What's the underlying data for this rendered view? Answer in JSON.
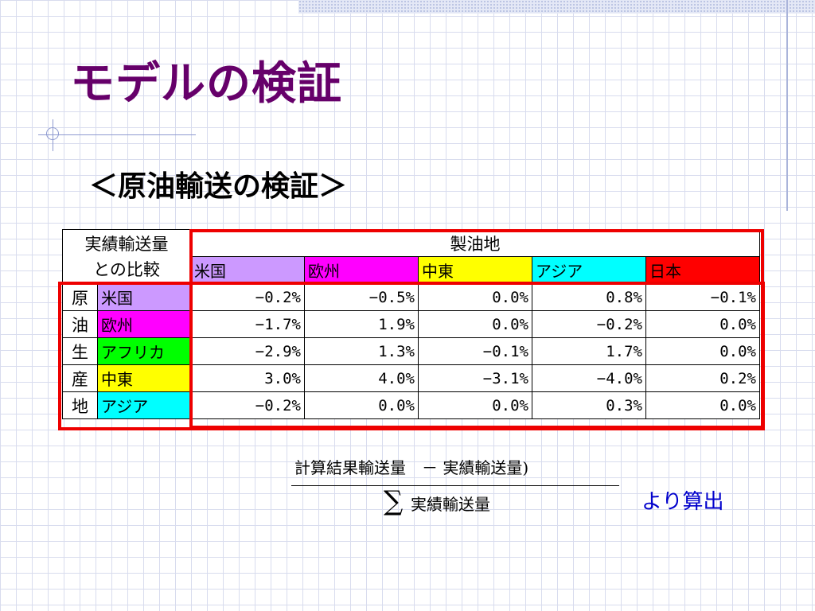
{
  "slide": {
    "title": "モデルの検証",
    "subtitle": "＜原油輸送の検証＞"
  },
  "table": {
    "corner_line1": "実績輸送量",
    "corner_line2": "との比較",
    "refinery_header": "製油地",
    "destinations": [
      {
        "label": "米国",
        "color": "#cc99ff"
      },
      {
        "label": "欧州",
        "color": "#ff00ff"
      },
      {
        "label": "中東",
        "color": "#ffff00"
      },
      {
        "label": "アジア",
        "color": "#00ffff"
      },
      {
        "label": "日本",
        "color": "#ff0000"
      }
    ],
    "origin_vertical_label": [
      "原",
      "油",
      "生",
      "産",
      "地"
    ],
    "rows": [
      {
        "origin": "米国",
        "color": "#cc99ff",
        "values": [
          "−0.2%",
          "−0.5%",
          "0.0%",
          "0.8%",
          "−0.1%"
        ]
      },
      {
        "origin": "欧州",
        "color": "#ff00ff",
        "values": [
          "−1.7%",
          "1.9%",
          "0.0%",
          "−0.2%",
          "0.0%"
        ]
      },
      {
        "origin": "アフリカ",
        "color": "#00ff00",
        "values": [
          "−2.9%",
          "1.3%",
          "−0.1%",
          "1.7%",
          "0.0%"
        ]
      },
      {
        "origin": "中東",
        "color": "#ffff00",
        "values": [
          "3.0%",
          "4.0%",
          "−3.1%",
          "−4.0%",
          "0.2%"
        ]
      },
      {
        "origin": "アジア",
        "color": "#00ffff",
        "values": [
          "−0.2%",
          "0.0%",
          "0.0%",
          "0.3%",
          "0.0%"
        ]
      }
    ]
  },
  "formula": {
    "numerator": "計算結果輸送量　－ 実績輸送量)",
    "sigma": "∑",
    "denominator": "実績輸送量"
  },
  "note": "より算出",
  "colors": {
    "title": "#66006a",
    "highlight_border": "#ee0000",
    "note": "#0000cc"
  }
}
